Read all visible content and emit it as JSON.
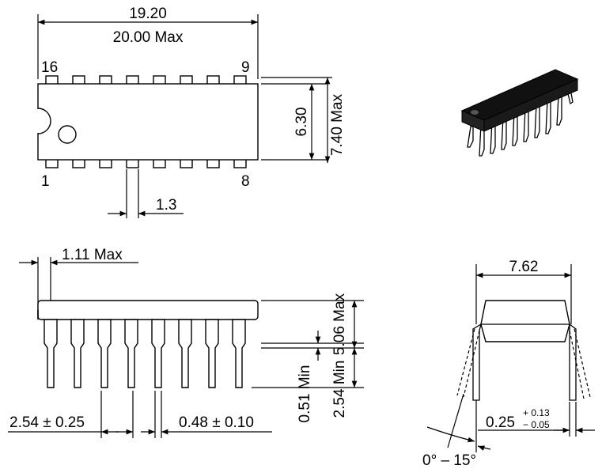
{
  "top_view": {
    "length": "19.20",
    "length_max": "20.00 Max",
    "pin_16": "16",
    "pin_9": "9",
    "pin_1": "1",
    "pin_8": "8",
    "body_width": "6.30",
    "body_width_max": "7.40 Max",
    "lead_width": "1.3"
  },
  "side_view": {
    "end_lead_max": "1.11 Max",
    "height_max": "5.06 Max",
    "standoff_min": "0.51 Min",
    "lead_length_min": "2.54 Min",
    "pitch": "2.54 ± 0.25",
    "lead_thickness": "0.48 ± 0.10"
  },
  "end_view": {
    "row_spacing": "7.62",
    "lead_thickness_nominal": "0.25",
    "tol_plus": "+ 0.13",
    "tol_minus": "− 0.05",
    "lead_angle": "0° – 15°"
  }
}
